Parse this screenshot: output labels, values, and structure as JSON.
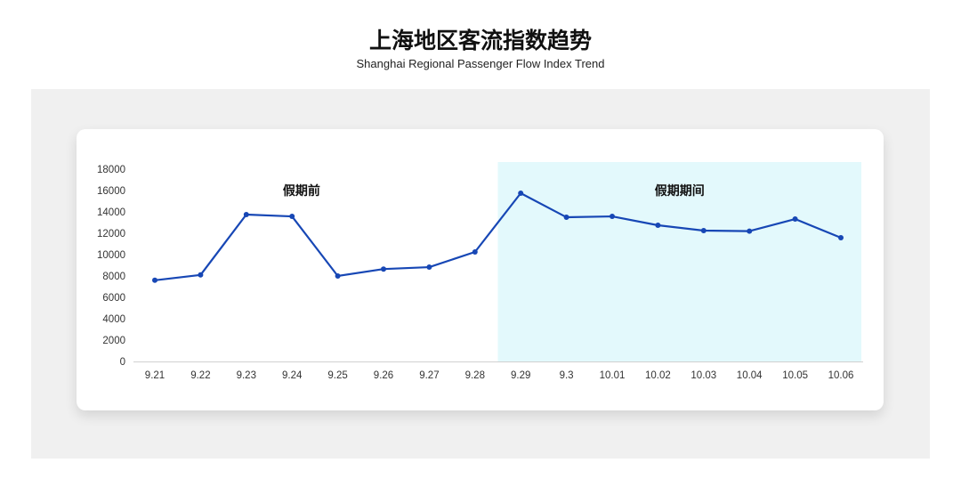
{
  "header": {
    "title": "上海地区客流指数趋势",
    "subtitle": "Shanghai Regional Passenger Flow Index Trend"
  },
  "chart_data": {
    "type": "line",
    "categories": [
      "9.21",
      "9.22",
      "9.23",
      "9.24",
      "9.25",
      "9.26",
      "9.27",
      "9.28",
      "9.29",
      "9.3",
      "10.01",
      "10.02",
      "10.03",
      "10.04",
      "10.05",
      "10.06"
    ],
    "values": [
      7600,
      8100,
      13750,
      13580,
      8000,
      8650,
      8830,
      10250,
      15750,
      13500,
      13580,
      12750,
      12250,
      12200,
      13330,
      11580
    ],
    "ylim": [
      0,
      18000
    ],
    "yticks": [
      0,
      2000,
      4000,
      6000,
      8000,
      10000,
      12000,
      14000,
      16000,
      18000
    ],
    "grid": false,
    "line_color": "#1747b5",
    "regions": [
      {
        "label": "假期前",
        "from": "9.21",
        "to": "9.28",
        "color": "#ffffff"
      },
      {
        "label": "假期期间",
        "from": "9.29",
        "to": "10.06",
        "color": "#e3f9fc"
      }
    ]
  }
}
